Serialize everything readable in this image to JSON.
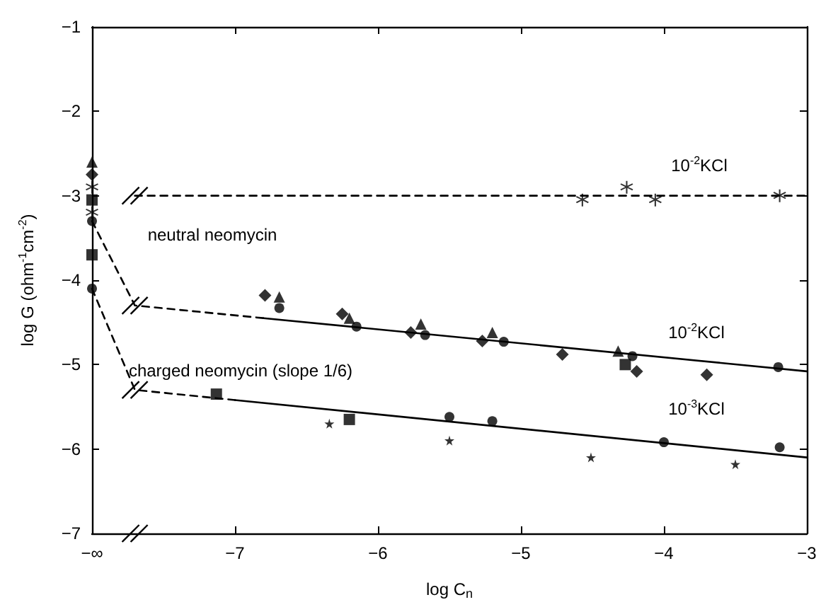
{
  "chart_data": {
    "type": "scatter",
    "xlabel": "log C$_{n}$",
    "ylabel": "log G (ohm$^{-1}$cm$^{-2}$)",
    "xlim": [
      -8,
      -3
    ],
    "xticks": [
      {
        "value": -8,
        "label": "−∞"
      },
      -7,
      -6,
      -5,
      -4,
      -3
    ],
    "ylim": [
      -7,
      -1
    ],
    "yticks": [
      -7,
      -6,
      -5,
      -4,
      -3,
      -2,
      -1
    ],
    "series": [
      {
        "type": "line",
        "line_style": "dashed",
        "marker": "none",
        "color": "#000000",
        "x": [
          -7.7,
          -3
        ],
        "values": [
          -3,
          -3
        ]
      },
      {
        "type": "line",
        "line_style": "dashed",
        "marker": "none",
        "color": "#000000",
        "x": [
          -8,
          -7.7,
          -6.8
        ],
        "values": [
          -3.3,
          -4.3,
          -4.45
        ]
      },
      {
        "type": "line",
        "line_style": "solid",
        "marker": "none",
        "color": "#000000",
        "x": [
          -6.8,
          -3
        ],
        "values": [
          -4.45,
          -5.08
        ]
      },
      {
        "type": "line",
        "line_style": "dashed",
        "marker": "none",
        "color": "#000000",
        "x": [
          -8,
          -7.7,
          -7.0
        ],
        "values": [
          -4.1,
          -5.3,
          -5.42
        ]
      },
      {
        "type": "line",
        "line_style": "solid",
        "marker": "none",
        "color": "#000000",
        "x": [
          -7.0,
          -3
        ],
        "values": [
          -5.42,
          -6.1
        ]
      },
      {
        "marker": "cross",
        "color": "#000000",
        "x": [
          -8,
          -8,
          -4.57,
          -4.26,
          -4.06,
          -3.19
        ],
        "values": [
          -2.9,
          -3.2,
          -3.05,
          -2.9,
          -3.05,
          -3.0
        ]
      },
      {
        "marker": "diamond",
        "color": "#000000",
        "x": [
          -8,
          -6.79,
          -6.25,
          -5.77,
          -5.27,
          -4.71,
          -4.19,
          -3.7
        ],
        "values": [
          -2.75,
          -4.18,
          -4.4,
          -4.62,
          -4.72,
          -4.88,
          -5.08,
          -5.12
        ]
      },
      {
        "marker": "triangle",
        "color": "#000000",
        "x": [
          -8,
          -6.69,
          -6.2,
          -5.7,
          -5.2,
          -4.32
        ],
        "values": [
          -2.6,
          -4.2,
          -4.45,
          -4.52,
          -4.62,
          -4.84
        ]
      },
      {
        "marker": "circle",
        "color": "#000000",
        "x": [
          -8,
          -6.69,
          -6.15,
          -5.67,
          -5.12,
          -4.22,
          -3.2
        ],
        "values": [
          -3.3,
          -4.33,
          -4.55,
          -4.65,
          -4.73,
          -4.9,
          -5.03
        ]
      },
      {
        "marker": "square",
        "color": "#000000",
        "x": [
          -8,
          -4.27
        ],
        "values": [
          -3.05,
          -5.0
        ]
      },
      {
        "marker": "square",
        "color": "#000000",
        "x": [
          -8,
          -7.13,
          -6.2
        ],
        "values": [
          -3.7,
          -5.35,
          -5.65
        ]
      },
      {
        "marker": "circle",
        "color": "#000000",
        "x": [
          -8,
          -5.5,
          -5.2,
          -4.0,
          -3.19
        ],
        "values": [
          -4.1,
          -5.62,
          -5.67,
          -5.92,
          -5.98
        ]
      },
      {
        "marker": "star",
        "color": "#000000",
        "x": [
          -6.34,
          -5.5,
          -4.51,
          -3.5
        ],
        "values": [
          -5.7,
          -5.9,
          -6.1,
          -6.18
        ]
      }
    ],
    "annotations": [
      "neutral neomycin",
      "charged neomycin (slope 1/6)",
      "10$^{-2}$KCl",
      "10$^{-2}$KCl",
      "10$^{-3}$KCl"
    ]
  }
}
